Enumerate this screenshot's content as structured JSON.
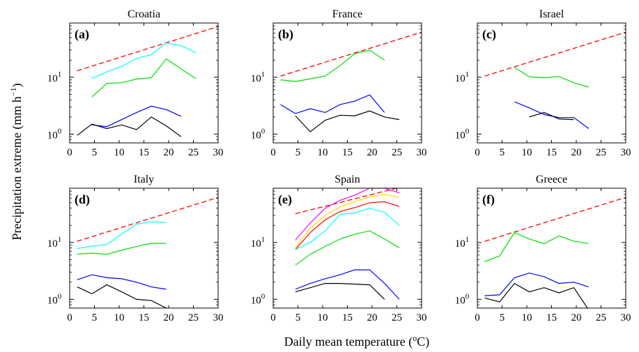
{
  "figure": {
    "xlabel": "Daily mean temperature (",
    "xlabel_unit_sup": "o",
    "xlabel_tail": "C)",
    "ylabel": "Precipitation extreme (mm h",
    "ylabel_unit_sup": "−1",
    "ylabel_tail": ")"
  },
  "chart_data": [
    {
      "type": "line",
      "title": "Croatia",
      "letter": "(a)",
      "yscale": "log",
      "xlim": [
        0,
        30
      ],
      "ylim": [
        0.7,
        90
      ],
      "xticks": [
        0,
        5,
        10,
        15,
        20,
        25,
        30
      ],
      "yticks": [
        {
          "value": 1,
          "label": "10",
          "exp": "0"
        },
        {
          "value": 10,
          "label": "10",
          "exp": "1"
        }
      ],
      "series": [
        {
          "color": "#ff0000",
          "dash": true,
          "x": [
            1.5,
            30
          ],
          "y": [
            13,
            78
          ]
        },
        {
          "color": "#00ffff",
          "x": [
            4.5,
            7.5,
            10.5,
            13.5,
            16.5,
            19.5,
            22.5,
            25.5
          ],
          "y": [
            9.5,
            12.5,
            15.5,
            21.5,
            25,
            40,
            36,
            27
          ]
        },
        {
          "color": "#00dd00",
          "x": [
            4.5,
            7.5,
            10.5,
            13.5,
            16.5,
            19.5,
            22.5,
            25.5
          ],
          "y": [
            4.5,
            7.8,
            8,
            9.3,
            9.8,
            21,
            14,
            9.5
          ]
        },
        {
          "color": "#0000ff",
          "x": [
            4.5,
            7.5,
            10.5,
            13.5,
            16.5,
            19.5,
            22.5
          ],
          "y": [
            1.45,
            1.35,
            1.8,
            2.4,
            3.1,
            2.7,
            2.05
          ]
        },
        {
          "color": "#000000",
          "x": [
            1.5,
            4.5,
            7.5,
            10.5,
            13.5,
            16.5,
            19.5,
            22.5
          ],
          "y": [
            0.95,
            1.5,
            1.25,
            1.45,
            1.2,
            2.0,
            1.4,
            0.9
          ]
        }
      ]
    },
    {
      "type": "line",
      "title": "France",
      "letter": "(b)",
      "yscale": "log",
      "xlim": [
        0,
        30
      ],
      "ylim": [
        0.7,
        90
      ],
      "xticks": [
        0,
        5,
        10,
        15,
        20,
        25,
        30
      ],
      "yticks": [
        {
          "value": 1,
          "label": "10",
          "exp": "0"
        },
        {
          "value": 10,
          "label": "10",
          "exp": "1"
        }
      ],
      "series": [
        {
          "color": "#ff0000",
          "dash": true,
          "x": [
            1.5,
            30
          ],
          "y": [
            10.5,
            62
          ]
        },
        {
          "color": "#00dd00",
          "x": [
            1.5,
            4.5,
            7.5,
            10.5,
            13.5,
            16.5,
            19.5,
            22.5
          ],
          "y": [
            9,
            8.4,
            9.4,
            10.5,
            16,
            26,
            30,
            20
          ]
        },
        {
          "color": "#0000ff",
          "x": [
            1.5,
            4.5,
            7.5,
            10.5,
            13.5,
            16.5,
            19.5,
            22.5
          ],
          "y": [
            3.3,
            2.3,
            2.8,
            2.4,
            3.3,
            3.8,
            4.9,
            2.4
          ]
        },
        {
          "color": "#000000",
          "x": [
            4.5,
            7.5,
            10.5,
            13.5,
            16.5,
            19.5,
            22.5,
            25.5
          ],
          "y": [
            2.1,
            1.1,
            1.75,
            2.15,
            2.1,
            2.55,
            2.0,
            1.8
          ]
        }
      ]
    },
    {
      "type": "line",
      "title": "Israel",
      "letter": "(c)",
      "yscale": "log",
      "xlim": [
        0,
        30
      ],
      "ylim": [
        0.7,
        90
      ],
      "xticks": [
        0,
        5,
        10,
        15,
        20,
        25,
        30
      ],
      "yticks": [
        {
          "value": 1,
          "label": "10",
          "exp": "0"
        },
        {
          "value": 10,
          "label": "10",
          "exp": "1"
        }
      ],
      "series": [
        {
          "color": "#ff0000",
          "dash": true,
          "x": [
            1.5,
            30
          ],
          "y": [
            10.5,
            62
          ]
        },
        {
          "color": "#00dd00",
          "x": [
            7.5,
            10.5,
            13.5,
            16.5,
            19.5,
            22.5
          ],
          "y": [
            15,
            10.2,
            9.8,
            10.3,
            8.0,
            6.7
          ]
        },
        {
          "color": "#0000ff",
          "x": [
            7.5,
            10.5,
            13.5,
            16.5,
            19.5,
            22.5
          ],
          "y": [
            3.7,
            2.9,
            2.2,
            1.95,
            1.95,
            1.25
          ]
        },
        {
          "color": "#000000",
          "x": [
            10.5,
            13.5,
            16.5,
            19.5
          ],
          "y": [
            2.0,
            2.4,
            1.85,
            1.8
          ]
        }
      ]
    },
    {
      "type": "line",
      "title": "Italy",
      "letter": "(d)",
      "yscale": "log",
      "xlim": [
        0,
        30
      ],
      "ylim": [
        0.7,
        90
      ],
      "xticks": [
        0,
        5,
        10,
        15,
        20,
        25,
        30
      ],
      "yticks": [
        {
          "value": 1,
          "label": "10",
          "exp": "0"
        },
        {
          "value": 10,
          "label": "10",
          "exp": "1"
        }
      ],
      "series": [
        {
          "color": "#ff0000",
          "dash": true,
          "x": [
            1.5,
            30
          ],
          "y": [
            10.5,
            62
          ]
        },
        {
          "color": "#00ffff",
          "x": [
            1.5,
            4.5,
            7.5,
            10.5,
            13.5,
            16.5,
            19.5
          ],
          "y": [
            7.8,
            8.6,
            9.2,
            14,
            21,
            23,
            22.5
          ]
        },
        {
          "color": "#00dd00",
          "x": [
            1.5,
            4.5,
            7.5,
            10.5,
            13.5,
            16.5,
            19.5
          ],
          "y": [
            6.2,
            6.5,
            6.2,
            7.3,
            8.5,
            9.7,
            9.6
          ]
        },
        {
          "color": "#0000ff",
          "x": [
            1.5,
            4.5,
            7.5,
            10.5,
            13.5,
            16.5,
            19.5
          ],
          "y": [
            2.2,
            2.7,
            2.4,
            2.3,
            2.0,
            1.65,
            1.5
          ]
        },
        {
          "color": "#000000",
          "x": [
            1.5,
            4.5,
            7.5,
            10.5,
            13.5,
            16.5,
            19.5
          ],
          "y": [
            1.65,
            1.25,
            1.8,
            1.35,
            1.0,
            0.95,
            0.7
          ]
        }
      ]
    },
    {
      "type": "line",
      "title": "Spain",
      "letter": "(e)",
      "yscale": "log",
      "xlim": [
        0,
        30
      ],
      "ylim": [
        0.7,
        90
      ],
      "xticks": [
        0,
        5,
        10,
        15,
        20,
        25,
        30
      ],
      "yticks": [
        {
          "value": 1,
          "label": "10",
          "exp": "0"
        },
        {
          "value": 10,
          "label": "10",
          "exp": "1"
        }
      ],
      "series": [
        {
          "color": "#ff0000",
          "dash": true,
          "x": [
            4.5,
            26
          ],
          "y": [
            32,
            95
          ]
        },
        {
          "color": "#ff00ff",
          "x": [
            4.5,
            7.5,
            10.5,
            13.5,
            16.5,
            19.5,
            22.5,
            25.5
          ],
          "y": [
            11,
            22,
            40,
            55,
            68,
            90,
            90,
            75
          ]
        },
        {
          "color": "#ffdd00",
          "x": [
            4.5,
            7.5,
            10.5,
            13.5,
            16.5,
            19.5,
            22.5,
            25.5
          ],
          "y": [
            8,
            18,
            30,
            42,
            52,
            63,
            70,
            62
          ]
        },
        {
          "color": "#ff0000",
          "x": [
            4.5,
            7.5,
            10.5,
            13.5,
            16.5,
            19.5,
            22.5,
            25.5
          ],
          "y": [
            7.5,
            15,
            25,
            35,
            41,
            50,
            52,
            43
          ]
        },
        {
          "color": "#00ffff",
          "x": [
            4.5,
            7.5,
            10.5,
            13.5,
            16.5,
            19.5,
            22.5,
            25.5
          ],
          "y": [
            7.5,
            10,
            16,
            31,
            33,
            40,
            34,
            20
          ]
        },
        {
          "color": "#00dd00",
          "x": [
            4.5,
            7.5,
            10.5,
            13.5,
            16.5,
            19.5,
            22.5,
            25.5
          ],
          "y": [
            4,
            6.2,
            8.5,
            11.5,
            14,
            16,
            11.5,
            8
          ]
        },
        {
          "color": "#0000ff",
          "x": [
            4.5,
            7.5,
            10.5,
            13.5,
            16.5,
            19.5,
            22.5,
            25.5
          ],
          "y": [
            1.5,
            1.9,
            2.3,
            2.7,
            3.3,
            3.3,
            1.9,
            1.0
          ]
        },
        {
          "color": "#000000",
          "x": [
            4.5,
            7.5,
            10.5,
            13.5,
            16.5,
            19.5,
            22.5
          ],
          "y": [
            1.35,
            1.6,
            1.9,
            1.9,
            1.85,
            1.8,
            1.0
          ]
        }
      ]
    },
    {
      "type": "line",
      "title": "Greece",
      "letter": "(f)",
      "yscale": "log",
      "xlim": [
        0,
        30
      ],
      "ylim": [
        0.7,
        90
      ],
      "xticks": [
        0,
        5,
        10,
        15,
        20,
        25,
        30
      ],
      "yticks": [
        {
          "value": 1,
          "label": "10",
          "exp": "0"
        },
        {
          "value": 10,
          "label": "10",
          "exp": "1"
        }
      ],
      "series": [
        {
          "color": "#ff0000",
          "dash": true,
          "x": [
            1.5,
            30
          ],
          "y": [
            10.5,
            62
          ]
        },
        {
          "color": "#00dd00",
          "x": [
            1.5,
            4.5,
            7.5,
            10.5,
            13.5,
            16.5,
            19.5,
            22.5
          ],
          "y": [
            4.6,
            5.8,
            15,
            11.5,
            9.5,
            13,
            10.5,
            9.6
          ]
        },
        {
          "color": "#0000ff",
          "x": [
            1.5,
            4.5,
            7.5,
            10.5,
            13.5,
            16.5,
            19.5,
            22.5
          ],
          "y": [
            1.15,
            1.2,
            2.4,
            2.9,
            2.5,
            1.9,
            2.0,
            1.65
          ]
        },
        {
          "color": "#000000",
          "x": [
            1.5,
            4.5,
            7.5,
            10.5,
            13.5,
            16.5,
            19.5,
            22.5
          ],
          "y": [
            1.05,
            0.9,
            1.9,
            1.35,
            1.6,
            1.3,
            1.6,
            0.65
          ]
        }
      ]
    }
  ]
}
